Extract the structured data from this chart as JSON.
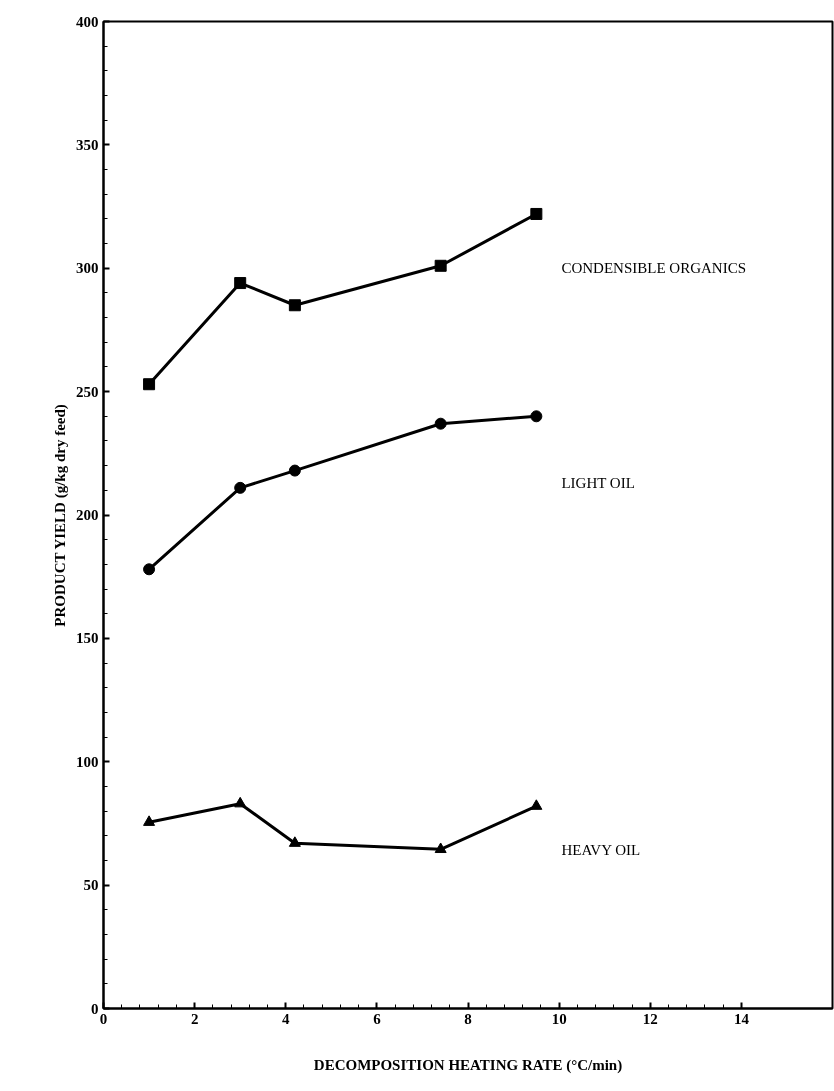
{
  "chart_data": {
    "type": "line",
    "xlabel": "DECOMPOSITION HEATING RATE (°C/min)",
    "ylabel": "PRODUCT YIELD (g/kg dry feed)",
    "x": [
      1.0,
      3.0,
      4.2,
      7.4,
      9.5
    ],
    "series": [
      {
        "name": "CONDENSIBLE ORGANICS",
        "color": "#000000",
        "marker": "square",
        "values": [
          253,
          294,
          285,
          301,
          322
        ]
      },
      {
        "name": "LIGHT OIL",
        "color": "#000000",
        "marker": "circle",
        "values": [
          178,
          211,
          218,
          237,
          240
        ]
      },
      {
        "name": "HEAVY OIL",
        "color": "#000000",
        "marker": "triangle",
        "values": [
          75.5,
          83,
          67,
          64.5,
          82
        ]
      }
    ],
    "xlim": [
      0,
      16
    ],
    "xticks": [
      0,
      2,
      4,
      6,
      8,
      10,
      12,
      14
    ],
    "ylim": [
      0,
      400
    ],
    "yticks": [
      0,
      50,
      100,
      150,
      200,
      250,
      300,
      350,
      400
    ],
    "grid": false,
    "line_style": "solid"
  }
}
